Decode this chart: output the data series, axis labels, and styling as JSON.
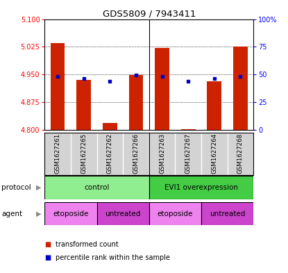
{
  "title": "GDS5809 / 7943411",
  "samples": [
    "GSM1627261",
    "GSM1627265",
    "GSM1627262",
    "GSM1627266",
    "GSM1627263",
    "GSM1627267",
    "GSM1627264",
    "GSM1627268"
  ],
  "red_values": [
    5.035,
    4.935,
    4.818,
    4.948,
    5.022,
    4.802,
    4.932,
    5.025
  ],
  "blue_values": [
    4.944,
    4.938,
    4.932,
    4.948,
    4.944,
    4.932,
    4.938,
    4.944
  ],
  "ymin": 4.8,
  "ymax": 5.1,
  "yticks": [
    4.8,
    4.875,
    4.95,
    5.025,
    5.1
  ],
  "right_yticks": [
    0,
    25,
    50,
    75,
    100
  ],
  "right_ylabels": [
    "0",
    "25",
    "50",
    "75",
    "100%"
  ],
  "protocol_labels": [
    {
      "text": "control",
      "start": 0,
      "end": 4
    },
    {
      "text": "EVI1 overexpression",
      "start": 4,
      "end": 8
    }
  ],
  "agent_labels": [
    {
      "text": "etoposide",
      "start": 0,
      "end": 2,
      "color": "#EE82EE"
    },
    {
      "text": "untreated",
      "start": 2,
      "end": 4,
      "color": "#CC44CC"
    },
    {
      "text": "etoposide",
      "start": 4,
      "end": 6,
      "color": "#EE82EE"
    },
    {
      "text": "untreated",
      "start": 6,
      "end": 8,
      "color": "#CC44CC"
    }
  ],
  "protocol_color_left": "#90EE90",
  "protocol_color_right": "#44CC44",
  "bar_color": "#CC2200",
  "blue_dot_color": "#0000CC",
  "bg_color": "#D3D3D3",
  "bar_width": 0.55
}
